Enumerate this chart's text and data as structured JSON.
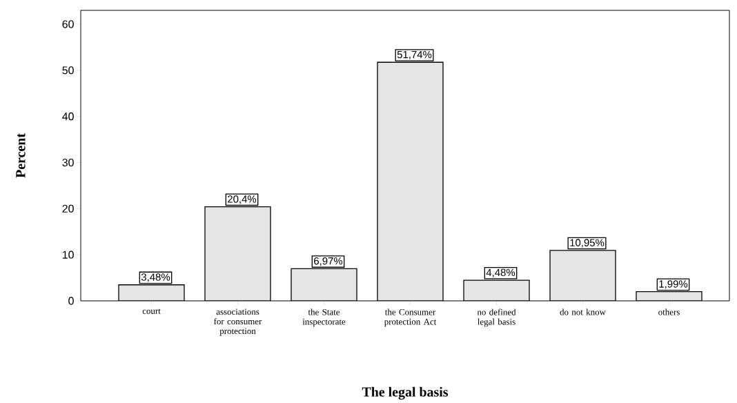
{
  "chart_data": {
    "type": "bar",
    "xlabel": "The legal basis",
    "ylabel": "Percent",
    "categories": [
      "court",
      "associations for consumer protection",
      "the State inspectorate",
      "the Consumer protection Act",
      "no defined legal basis",
      "do not know",
      "others"
    ],
    "values": [
      3.48,
      20.4,
      6.97,
      51.74,
      4.48,
      10.95,
      1.99
    ],
    "value_labels": [
      "3,48%",
      "20,4%",
      "6,97%",
      "51,74%",
      "4,48%",
      "10,95%",
      "1,99%"
    ],
    "color": "#e5e5e5",
    "ylim": [
      0,
      63
    ],
    "yticks": [
      0,
      10,
      20,
      30,
      40,
      50,
      60
    ],
    "grid": false
  }
}
